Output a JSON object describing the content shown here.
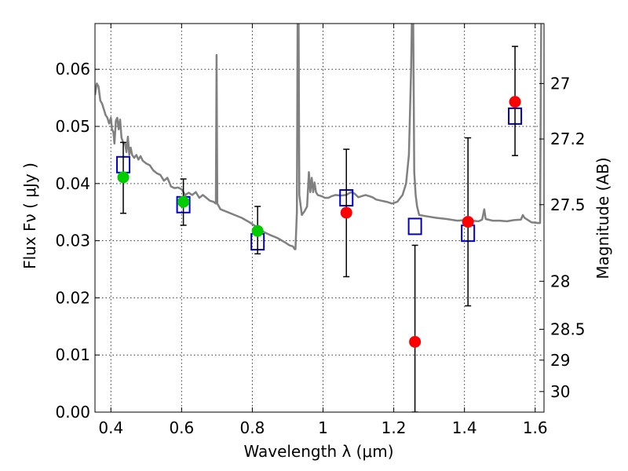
{
  "chart_data": {
    "type": "scatter",
    "title": "",
    "xlabel": "Wavelength  λ (μm)",
    "ylabel": "Flux  Fν  ( μJy )",
    "ylabel_right": "Magnitude (AB)",
    "xlim": [
      0.355,
      1.625
    ],
    "ylim": [
      0.0,
      0.068
    ],
    "grid": true,
    "x_ticks": [
      0.4,
      0.6,
      0.8,
      1.0,
      1.2,
      1.4,
      1.6
    ],
    "x_tick_labels": [
      "0.4",
      "0.6",
      "0.8",
      "1",
      "1.2",
      "1.4",
      "1.6"
    ],
    "y_ticks": [
      0.0,
      0.01,
      0.02,
      0.03,
      0.04,
      0.05,
      0.06
    ],
    "y_tick_labels": [
      "0.00",
      "0.01",
      "0.02",
      "0.03",
      "0.04",
      "0.05",
      "0.06"
    ],
    "right_axis_ticks": [
      {
        "label": "27",
        "flux": 0.0575
      },
      {
        "label": "27.2",
        "flux": 0.0478
      },
      {
        "label": "27.5",
        "flux": 0.0363
      },
      {
        "label": "28",
        "flux": 0.0229
      },
      {
        "label": "28.5",
        "flux": 0.0145
      },
      {
        "label": "29",
        "flux": 0.0091
      },
      {
        "label": "30",
        "flux": 0.0036
      }
    ],
    "series": [
      {
        "type": "line",
        "color": "#808080",
        "points": [
          [
            0.355,
            0.0555
          ],
          [
            0.36,
            0.0575
          ],
          [
            0.365,
            0.057
          ],
          [
            0.37,
            0.0545
          ],
          [
            0.375,
            0.054
          ],
          [
            0.38,
            0.053
          ],
          [
            0.385,
            0.052
          ],
          [
            0.39,
            0.0515
          ],
          [
            0.395,
            0.0505
          ],
          [
            0.4,
            0.0515
          ],
          [
            0.403,
            0.0495
          ],
          [
            0.407,
            0.049
          ],
          [
            0.41,
            0.047
          ],
          [
            0.414,
            0.051
          ],
          [
            0.418,
            0.0515
          ],
          [
            0.422,
            0.0495
          ],
          [
            0.426,
            0.0512
          ],
          [
            0.43,
            0.048
          ],
          [
            0.436,
            0.047
          ],
          [
            0.44,
            0.047
          ],
          [
            0.444,
            0.0455
          ],
          [
            0.448,
            0.0482
          ],
          [
            0.452,
            0.045
          ],
          [
            0.456,
            0.0463
          ],
          [
            0.46,
            0.045
          ],
          [
            0.466,
            0.0445
          ],
          [
            0.472,
            0.045
          ],
          [
            0.478,
            0.0442
          ],
          [
            0.484,
            0.0448
          ],
          [
            0.49,
            0.044
          ],
          [
            0.5,
            0.0435
          ],
          [
            0.51,
            0.0432
          ],
          [
            0.52,
            0.0423
          ],
          [
            0.53,
            0.0418
          ],
          [
            0.54,
            0.0415
          ],
          [
            0.55,
            0.0405
          ],
          [
            0.56,
            0.041
          ],
          [
            0.57,
            0.0395
          ],
          [
            0.58,
            0.0392
          ],
          [
            0.59,
            0.0393
          ],
          [
            0.6,
            0.039
          ],
          [
            0.61,
            0.038
          ],
          [
            0.62,
            0.0384
          ],
          [
            0.63,
            0.038
          ],
          [
            0.64,
            0.0385
          ],
          [
            0.65,
            0.0375
          ],
          [
            0.66,
            0.038
          ],
          [
            0.67,
            0.0375
          ],
          [
            0.68,
            0.037
          ],
          [
            0.69,
            0.0368
          ],
          [
            0.697,
            0.0365
          ],
          [
            0.699,
            0.0625
          ],
          [
            0.701,
            0.0365
          ],
          [
            0.71,
            0.0355
          ],
          [
            0.73,
            0.035
          ],
          [
            0.75,
            0.0345
          ],
          [
            0.77,
            0.034
          ],
          [
            0.79,
            0.0333
          ],
          [
            0.81,
            0.0325
          ],
          [
            0.83,
            0.0316
          ],
          [
            0.85,
            0.031
          ],
          [
            0.87,
            0.0305
          ],
          [
            0.89,
            0.0298
          ],
          [
            0.905,
            0.0292
          ],
          [
            0.915,
            0.029
          ],
          [
            0.92,
            0.0285
          ],
          [
            0.922,
            0.0285
          ],
          [
            0.926,
            0.035
          ],
          [
            0.928,
            0.068
          ],
          [
            0.931,
            0.068
          ],
          [
            0.933,
            0.038
          ],
          [
            0.94,
            0.0345
          ],
          [
            0.948,
            0.0352
          ],
          [
            0.955,
            0.036
          ],
          [
            0.96,
            0.042
          ],
          [
            0.964,
            0.0385
          ],
          [
            0.968,
            0.041
          ],
          [
            0.972,
            0.0385
          ],
          [
            0.976,
            0.0402
          ],
          [
            0.98,
            0.0385
          ],
          [
            0.985,
            0.038
          ],
          [
            0.995,
            0.0378
          ],
          [
            1.005,
            0.0375
          ],
          [
            1.015,
            0.0375
          ],
          [
            1.025,
            0.0378
          ],
          [
            1.035,
            0.038
          ],
          [
            1.05,
            0.0379
          ],
          [
            1.065,
            0.038
          ],
          [
            1.08,
            0.0385
          ],
          [
            1.09,
            0.0382
          ],
          [
            1.1,
            0.0376
          ],
          [
            1.11,
            0.0378
          ],
          [
            1.12,
            0.038
          ],
          [
            1.13,
            0.0378
          ],
          [
            1.14,
            0.0376
          ],
          [
            1.15,
            0.0372
          ],
          [
            1.165,
            0.037
          ],
          [
            1.18,
            0.0368
          ],
          [
            1.195,
            0.0365
          ],
          [
            1.21,
            0.0368
          ],
          [
            1.225,
            0.038
          ],
          [
            1.235,
            0.04
          ],
          [
            1.243,
            0.045
          ],
          [
            1.249,
            0.06
          ],
          [
            1.251,
            0.068
          ],
          [
            1.255,
            0.068
          ],
          [
            1.258,
            0.042
          ],
          [
            1.262,
            0.038
          ],
          [
            1.266,
            0.036
          ],
          [
            1.272,
            0.0345
          ],
          [
            1.29,
            0.0343
          ],
          [
            1.32,
            0.034
          ],
          [
            1.35,
            0.0338
          ],
          [
            1.38,
            0.0335
          ],
          [
            1.4,
            0.0336
          ],
          [
            1.42,
            0.0335
          ],
          [
            1.44,
            0.0334
          ],
          [
            1.45,
            0.0337
          ],
          [
            1.456,
            0.0355
          ],
          [
            1.46,
            0.0338
          ],
          [
            1.48,
            0.0335
          ],
          [
            1.5,
            0.0335
          ],
          [
            1.52,
            0.0334
          ],
          [
            1.54,
            0.0336
          ],
          [
            1.56,
            0.0337
          ],
          [
            1.565,
            0.0345
          ],
          [
            1.57,
            0.034
          ],
          [
            1.59,
            0.0332
          ],
          [
            1.61,
            0.0331
          ],
          [
            1.614,
            0.0331
          ],
          [
            1.617,
            0.068
          ]
        ]
      },
      {
        "type": "markers",
        "marker": "square",
        "color": "#0000cc",
        "points": [
          [
            0.435,
            0.0433
          ],
          [
            0.605,
            0.0363
          ],
          [
            0.815,
            0.0298
          ],
          [
            1.066,
            0.0375
          ],
          [
            1.26,
            0.0325
          ],
          [
            1.41,
            0.0313
          ],
          [
            1.543,
            0.0518
          ]
        ]
      },
      {
        "type": "markers",
        "marker": "circle",
        "color": "#00cc00",
        "points": [
          {
            "x": 0.435,
            "y": 0.0411,
            "err_low": 0.0348,
            "err_high": 0.0472
          },
          {
            "x": 0.605,
            "y": 0.0368,
            "err_low": 0.0327,
            "err_high": 0.0408
          },
          {
            "x": 0.815,
            "y": 0.0317,
            "err_low": 0.0277,
            "err_high": 0.036
          }
        ]
      },
      {
        "type": "markers",
        "marker": "circle",
        "color": "#ff0000",
        "points": [
          {
            "x": 1.066,
            "y": 0.0349,
            "err_low": 0.0237,
            "err_high": 0.046
          },
          {
            "x": 1.26,
            "y": 0.0123,
            "err_low": 0.0,
            "err_high": 0.0292
          },
          {
            "x": 1.41,
            "y": 0.0333,
            "err_low": 0.0186,
            "err_high": 0.048
          },
          {
            "x": 1.543,
            "y": 0.0543,
            "err_low": 0.0449,
            "err_high": 0.064
          }
        ]
      }
    ]
  }
}
